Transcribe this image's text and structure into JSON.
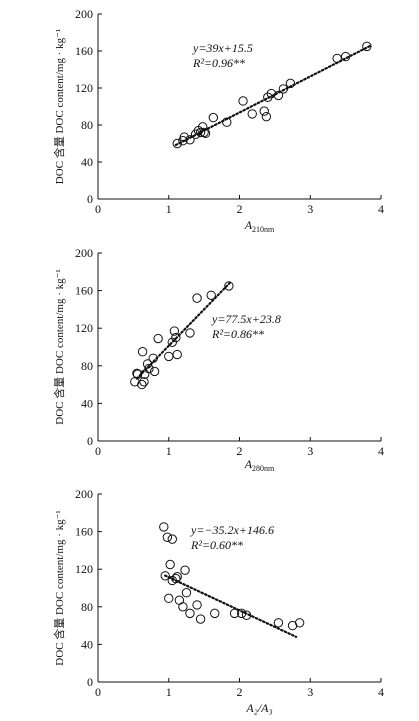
{
  "chart_data": [
    {
      "type": "scatter",
      "xlabel_main": "A",
      "xlabel_sub": "210nm",
      "ylabel": "DOC 含量 DOC content/mg · kg⁻¹",
      "xlim": [
        0,
        4
      ],
      "ylim": [
        0,
        200
      ],
      "xticks": [
        "0",
        "1",
        "2",
        "3",
        "4"
      ],
      "yticks": [
        "0",
        "40",
        "80",
        "120",
        "160",
        "200"
      ],
      "equation": "y=39x+15.5",
      "r2": "R²=0.96**",
      "trend": {
        "slope": 39,
        "intercept": 15.5,
        "x_start": 1.1,
        "x_end": 3.85
      },
      "points": [
        [
          1.12,
          60
        ],
        [
          1.2,
          63
        ],
        [
          1.22,
          67
        ],
        [
          1.3,
          64
        ],
        [
          1.38,
          70
        ],
        [
          1.42,
          74
        ],
        [
          1.45,
          72
        ],
        [
          1.48,
          78
        ],
        [
          1.5,
          72
        ],
        [
          1.52,
          71
        ],
        [
          1.63,
          88
        ],
        [
          1.82,
          83
        ],
        [
          2.05,
          106
        ],
        [
          2.18,
          92
        ],
        [
          2.35,
          95
        ],
        [
          2.38,
          89
        ],
        [
          2.4,
          110
        ],
        [
          2.45,
          114
        ],
        [
          2.55,
          112
        ],
        [
          2.62,
          119
        ],
        [
          2.72,
          125
        ],
        [
          3.38,
          152
        ],
        [
          3.5,
          154
        ],
        [
          3.8,
          165
        ]
      ]
    },
    {
      "type": "scatter",
      "xlabel_main": "A",
      "xlabel_sub": "280nm",
      "ylabel": "DOC 含量 DOC content/mg · kg⁻¹",
      "xlim": [
        0,
        4
      ],
      "ylim": [
        0,
        200
      ],
      "xticks": [
        "0",
        "1",
        "2",
        "3",
        "4"
      ],
      "yticks": [
        "0",
        "40",
        "80",
        "120",
        "160",
        "200"
      ],
      "equation": "y=77.5x+23.8",
      "r2": "R²=0.86**",
      "trend": {
        "slope": 77.5,
        "intercept": 23.8,
        "x_start": 0.55,
        "x_end": 1.88
      },
      "points": [
        [
          0.52,
          63
        ],
        [
          0.55,
          72
        ],
        [
          0.56,
          71
        ],
        [
          0.62,
          60
        ],
        [
          0.63,
          95
        ],
        [
          0.65,
          63
        ],
        [
          0.66,
          71
        ],
        [
          0.7,
          82
        ],
        [
          0.72,
          77
        ],
        [
          0.78,
          88
        ],
        [
          0.8,
          74
        ],
        [
          0.85,
          109
        ],
        [
          1.0,
          90
        ],
        [
          1.05,
          105
        ],
        [
          1.08,
          117
        ],
        [
          1.1,
          110
        ],
        [
          1.12,
          92
        ],
        [
          1.3,
          115
        ],
        [
          1.4,
          152
        ],
        [
          1.6,
          155
        ],
        [
          1.85,
          165
        ]
      ]
    },
    {
      "type": "scatter",
      "xlabel_main": "A₂/A₃",
      "xlabel_sub": "",
      "ylabel": "DOC 含量 DOC content/mg · kg⁻¹",
      "xlim": [
        0,
        4
      ],
      "ylim": [
        0,
        200
      ],
      "xticks": [
        "0",
        "1",
        "2",
        "3",
        "4"
      ],
      "yticks": [
        "0",
        "40",
        "80",
        "120",
        "160",
        "200"
      ],
      "equation": "y=−35.2x+146.6",
      "r2": "R²=0.60**",
      "trend": {
        "slope": -35.2,
        "intercept": 146.6,
        "x_start": 0.95,
        "x_end": 2.8
      },
      "points": [
        [
          0.93,
          165
        ],
        [
          0.95,
          113
        ],
        [
          0.98,
          154
        ],
        [
          1.0,
          89
        ],
        [
          1.02,
          125
        ],
        [
          1.05,
          152
        ],
        [
          1.05,
          108
        ],
        [
          1.1,
          110
        ],
        [
          1.12,
          112
        ],
        [
          1.15,
          87
        ],
        [
          1.2,
          80
        ],
        [
          1.23,
          119
        ],
        [
          1.25,
          95
        ],
        [
          1.3,
          73
        ],
        [
          1.4,
          82
        ],
        [
          1.45,
          67
        ],
        [
          1.65,
          73
        ],
        [
          1.93,
          73
        ],
        [
          2.03,
          73
        ],
        [
          2.1,
          71
        ],
        [
          2.55,
          63
        ],
        [
          2.75,
          60
        ],
        [
          2.85,
          63
        ]
      ]
    }
  ]
}
